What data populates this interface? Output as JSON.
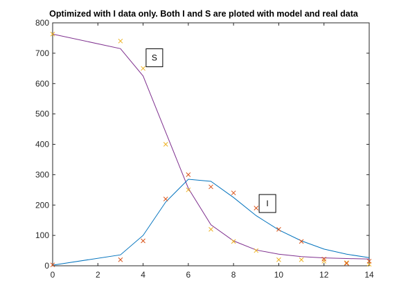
{
  "chart_data": {
    "type": "line",
    "title": "Optimized with I data only. Both I and S are ploted with model and real data",
    "xlabel": "",
    "ylabel": "",
    "xlim": [
      0,
      14
    ],
    "ylim": [
      0,
      800
    ],
    "x_ticks": [
      0,
      2,
      4,
      6,
      8,
      10,
      12,
      14
    ],
    "y_ticks": [
      0,
      100,
      200,
      300,
      400,
      500,
      600,
      700,
      800
    ],
    "grid": false,
    "series": [
      {
        "kind": "model-line",
        "color": "#7e2f8e",
        "x": [
          0,
          3,
          4,
          5,
          6,
          7,
          8,
          9,
          10,
          11,
          12,
          13,
          14
        ],
        "y": [
          763,
          715,
          625,
          440,
          255,
          135,
          82,
          52,
          38,
          30,
          26,
          24,
          22
        ]
      },
      {
        "kind": "model-line",
        "color": "#0072bd",
        "x": [
          0,
          3,
          4,
          5,
          6,
          7,
          8,
          9,
          10,
          11,
          12,
          13,
          14
        ],
        "y": [
          2,
          36,
          100,
          210,
          285,
          278,
          225,
          165,
          118,
          82,
          55,
          38,
          27
        ]
      },
      {
        "kind": "data-marker",
        "color": "#edb120",
        "x": [
          0,
          3,
          4,
          5,
          6,
          7,
          8,
          9,
          10,
          11,
          12,
          13,
          14
        ],
        "y": [
          763,
          740,
          650,
          400,
          250,
          120,
          80,
          50,
          20,
          20,
          15,
          10,
          5
        ]
      },
      {
        "kind": "data-marker",
        "color": "#d95319",
        "x": [
          0,
          3,
          4,
          5,
          6,
          7,
          8,
          9,
          10,
          11,
          12,
          13,
          14
        ],
        "y": [
          3,
          20,
          82,
          220,
          300,
          260,
          240,
          190,
          120,
          80,
          22,
          8,
          15
        ]
      }
    ],
    "annotations": [
      {
        "text": "S",
        "x": 4.5,
        "y": 685
      },
      {
        "text": "I",
        "x": 9.5,
        "y": 205
      }
    ]
  }
}
